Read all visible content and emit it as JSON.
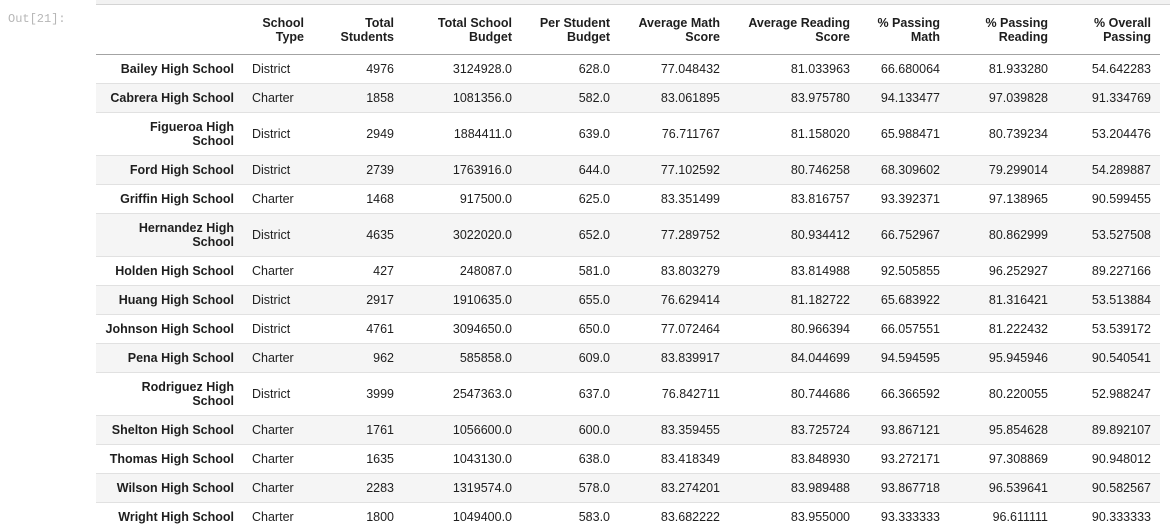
{
  "notebook": {
    "output_label": "Out[21]:"
  },
  "table": {
    "columns": [
      "School Type",
      "Total Students",
      "Total School Budget",
      "Per Student Budget",
      "Average Math Score",
      "Average Reading Score",
      "% Passing Math",
      "% Passing Reading",
      "% Overall Passing"
    ],
    "rows": [
      {
        "school": "Bailey High School",
        "values": [
          "District",
          "4976",
          "3124928.0",
          "628.0",
          "77.048432",
          "81.033963",
          "66.680064",
          "81.933280",
          "54.642283"
        ]
      },
      {
        "school": "Cabrera High School",
        "values": [
          "Charter",
          "1858",
          "1081356.0",
          "582.0",
          "83.061895",
          "83.975780",
          "94.133477",
          "97.039828",
          "91.334769"
        ]
      },
      {
        "school": "Figueroa High School",
        "values": [
          "District",
          "2949",
          "1884411.0",
          "639.0",
          "76.711767",
          "81.158020",
          "65.988471",
          "80.739234",
          "53.204476"
        ]
      },
      {
        "school": "Ford High School",
        "values": [
          "District",
          "2739",
          "1763916.0",
          "644.0",
          "77.102592",
          "80.746258",
          "68.309602",
          "79.299014",
          "54.289887"
        ]
      },
      {
        "school": "Griffin High School",
        "values": [
          "Charter",
          "1468",
          "917500.0",
          "625.0",
          "83.351499",
          "83.816757",
          "93.392371",
          "97.138965",
          "90.599455"
        ]
      },
      {
        "school": "Hernandez High School",
        "values": [
          "District",
          "4635",
          "3022020.0",
          "652.0",
          "77.289752",
          "80.934412",
          "66.752967",
          "80.862999",
          "53.527508"
        ]
      },
      {
        "school": "Holden High School",
        "values": [
          "Charter",
          "427",
          "248087.0",
          "581.0",
          "83.803279",
          "83.814988",
          "92.505855",
          "96.252927",
          "89.227166"
        ]
      },
      {
        "school": "Huang High School",
        "values": [
          "District",
          "2917",
          "1910635.0",
          "655.0",
          "76.629414",
          "81.182722",
          "65.683922",
          "81.316421",
          "53.513884"
        ]
      },
      {
        "school": "Johnson High School",
        "values": [
          "District",
          "4761",
          "3094650.0",
          "650.0",
          "77.072464",
          "80.966394",
          "66.057551",
          "81.222432",
          "53.539172"
        ]
      },
      {
        "school": "Pena High School",
        "values": [
          "Charter",
          "962",
          "585858.0",
          "609.0",
          "83.839917",
          "84.044699",
          "94.594595",
          "95.945946",
          "90.540541"
        ]
      },
      {
        "school": "Rodriguez High School",
        "values": [
          "District",
          "3999",
          "2547363.0",
          "637.0",
          "76.842711",
          "80.744686",
          "66.366592",
          "80.220055",
          "52.988247"
        ]
      },
      {
        "school": "Shelton High School",
        "values": [
          "Charter",
          "1761",
          "1056600.0",
          "600.0",
          "83.359455",
          "83.725724",
          "93.867121",
          "95.854628",
          "89.892107"
        ]
      },
      {
        "school": "Thomas High School",
        "values": [
          "Charter",
          "1635",
          "1043130.0",
          "638.0",
          "83.418349",
          "83.848930",
          "93.272171",
          "97.308869",
          "90.948012"
        ]
      },
      {
        "school": "Wilson High School",
        "values": [
          "Charter",
          "2283",
          "1319574.0",
          "578.0",
          "83.274201",
          "83.989488",
          "93.867718",
          "96.539641",
          "90.582567"
        ]
      },
      {
        "school": "Wright High School",
        "values": [
          "Charter",
          "1800",
          "1049400.0",
          "583.0",
          "83.682222",
          "83.955000",
          "93.333333",
          "96.611111",
          "90.333333"
        ]
      }
    ]
  },
  "colors": {
    "stripe_background": "#f5f5f5",
    "header_border": "#a3a3a3",
    "row_border": "#e1e1e1",
    "text": "#1e1e1e",
    "out_label": "#b6b6b6",
    "cell_strip_background": "#f2f2f2"
  }
}
